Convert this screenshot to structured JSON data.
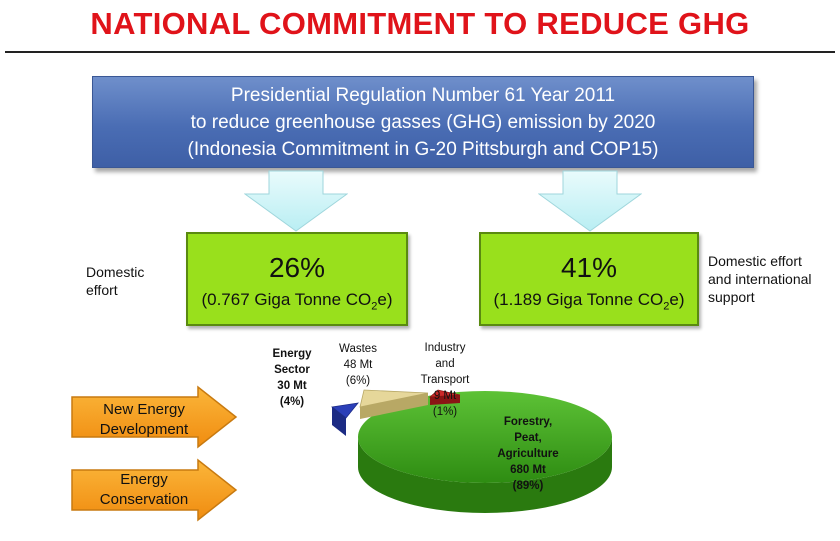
{
  "title": "NATIONAL COMMITMENT TO REDUCE GHG",
  "banner": {
    "line1": "Presidential Regulation Number 61 Year 2011",
    "line2": "to reduce greenhouse gasses (GHG) emission by 2020",
    "line3": "(Indonesia Commitment in G-20 Pittsburgh and COP15)"
  },
  "domestic": {
    "side_label_1": "Domestic",
    "side_label_2": "effort",
    "percent": "26%",
    "amount_prefix": "(0.767 Giga Tonne CO",
    "amount_sub": "2",
    "amount_suffix": "e)"
  },
  "international": {
    "side_label_1": "Domestic effort",
    "side_label_2": "and international",
    "side_label_3": "support",
    "percent": "41%",
    "amount_prefix": "(1.189 Giga Tonne CO",
    "amount_sub": "2",
    "amount_suffix": "e)"
  },
  "arrows": {
    "new_energy_1": "New Energy",
    "new_energy_2": "Development",
    "conservation_1": "Energy",
    "conservation_2": "Conservation"
  },
  "chart_data": {
    "type": "pie",
    "title": "",
    "series": [
      {
        "label_lines": [
          "Energy",
          "Sector",
          "30 Mt",
          "(4%)"
        ],
        "value_mt": 30,
        "percent": 4,
        "color": "#2b3fb8"
      },
      {
        "label_lines": [
          "Wastes",
          "48 Mt",
          "(6%)"
        ],
        "value_mt": 48,
        "percent": 6,
        "color": "#e6d79a"
      },
      {
        "label_lines": [
          "Industry",
          "and",
          "Transport",
          "9 Mt",
          "(1%)"
        ],
        "value_mt": 9,
        "percent": 1,
        "color": "#cc2a2a"
      },
      {
        "label_lines": [
          "Forestry,",
          "Peat,",
          "Agriculture",
          "680 Mt",
          "(89%)"
        ],
        "value_mt": 680,
        "percent": 89,
        "color": "#3aa21a"
      }
    ],
    "colors": {
      "title_red": "#e0131a",
      "banner_blue": "#4a6db4",
      "box_green": "#99e01c",
      "arrow_orange": "#f5a020",
      "arrow_cyan": "#cdf3f7"
    }
  }
}
